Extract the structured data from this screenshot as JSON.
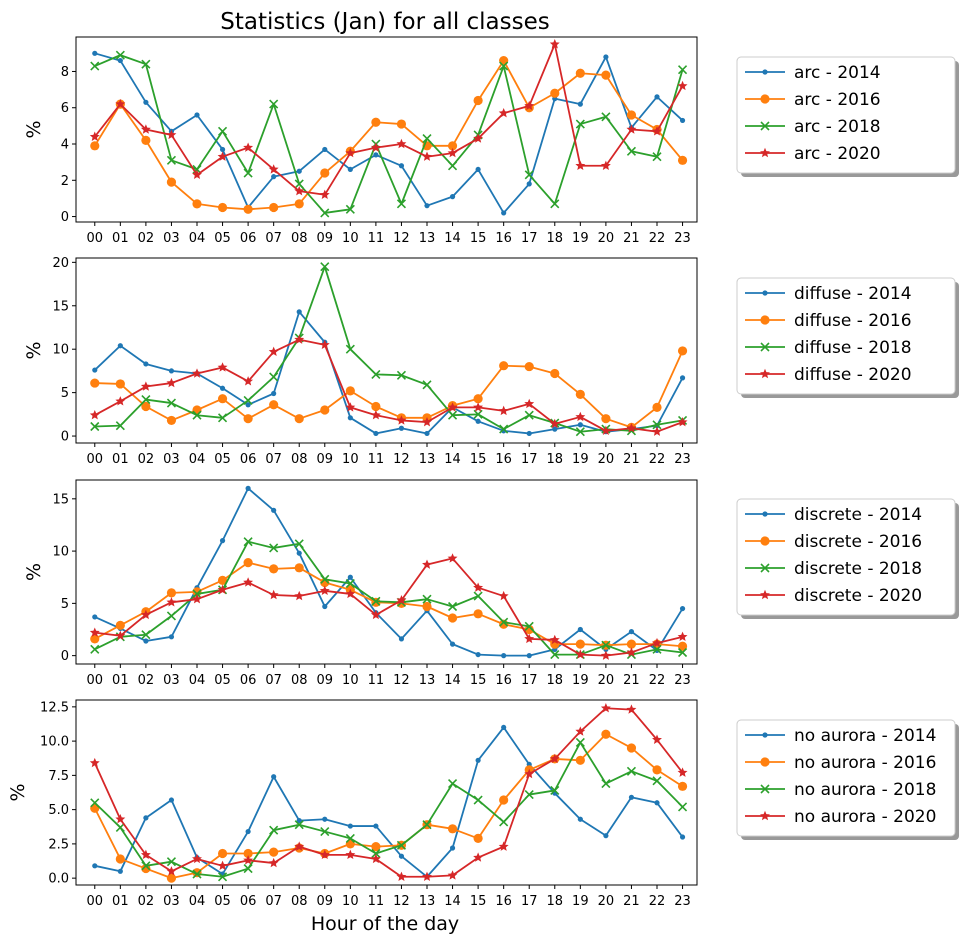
{
  "figure": {
    "title": "Statistics (Jan) for all classes",
    "xlabel": "Hour of the day"
  },
  "colors": {
    "2014": "#1f77b4",
    "2016": "#ff7f0e",
    "2018": "#2ca02c",
    "2020": "#d62728"
  },
  "chart_data": [
    {
      "type": "line",
      "x": [
        "00",
        "01",
        "02",
        "03",
        "04",
        "05",
        "06",
        "07",
        "08",
        "09",
        "10",
        "11",
        "12",
        "13",
        "14",
        "15",
        "16",
        "17",
        "18",
        "19",
        "20",
        "21",
        "22",
        "23"
      ],
      "ylabel": "%",
      "ylim": [
        -0.3,
        9.9
      ],
      "yticks": [
        0,
        2,
        4,
        6,
        8
      ],
      "legend": "right",
      "series": [
        {
          "name": "arc - 2014",
          "marker": "dot",
          "values": [
            9.0,
            8.6,
            6.3,
            4.7,
            5.6,
            3.7,
            0.5,
            2.2,
            2.5,
            3.7,
            2.6,
            3.4,
            2.8,
            0.6,
            1.1,
            2.6,
            0.2,
            1.8,
            6.5,
            6.2,
            8.8,
            4.9,
            6.6,
            5.3
          ]
        },
        {
          "name": "arc - 2016",
          "marker": "circle",
          "values": [
            3.9,
            6.2,
            4.2,
            1.9,
            0.7,
            0.5,
            0.4,
            0.5,
            0.7,
            2.4,
            3.6,
            5.2,
            5.1,
            3.9,
            3.9,
            6.4,
            8.6,
            6.0,
            6.8,
            7.9,
            7.8,
            5.6,
            4.8,
            3.1
          ]
        },
        {
          "name": "arc - 2018",
          "marker": "x",
          "values": [
            8.3,
            8.9,
            8.4,
            3.1,
            2.6,
            4.7,
            2.4,
            6.2,
            1.8,
            0.2,
            0.4,
            4.0,
            0.7,
            4.3,
            2.8,
            4.5,
            8.3,
            2.3,
            0.7,
            5.1,
            5.5,
            3.6,
            3.3,
            8.1
          ]
        },
        {
          "name": "arc - 2020",
          "marker": "star",
          "values": [
            4.4,
            6.2,
            4.8,
            4.5,
            2.3,
            3.3,
            3.8,
            2.6,
            1.4,
            1.2,
            3.5,
            3.8,
            4.0,
            3.3,
            3.5,
            4.3,
            5.7,
            6.1,
            9.5,
            2.8,
            2.8,
            4.8,
            4.7,
            7.2
          ]
        }
      ]
    },
    {
      "type": "line",
      "x": [
        "00",
        "01",
        "02",
        "03",
        "04",
        "05",
        "06",
        "07",
        "08",
        "09",
        "10",
        "11",
        "12",
        "13",
        "14",
        "15",
        "16",
        "17",
        "18",
        "19",
        "20",
        "21",
        "22",
        "23"
      ],
      "ylabel": "%",
      "ylim": [
        -0.8,
        20.5
      ],
      "yticks": [
        0,
        5,
        10,
        15,
        20
      ],
      "legend": "right",
      "series": [
        {
          "name": "diffuse - 2014",
          "marker": "dot",
          "values": [
            7.6,
            10.4,
            8.3,
            7.5,
            7.2,
            5.5,
            3.6,
            4.9,
            14.3,
            10.8,
            2.1,
            0.3,
            0.9,
            0.3,
            3.3,
            1.7,
            0.6,
            0.3,
            0.8,
            1.3,
            0.5,
            0.8,
            1.2,
            6.7
          ]
        },
        {
          "name": "diffuse - 2016",
          "marker": "circle",
          "values": [
            6.1,
            6.0,
            3.4,
            1.8,
            3.0,
            4.3,
            2.0,
            3.6,
            2.0,
            3.0,
            5.2,
            3.4,
            2.1,
            2.1,
            3.5,
            4.3,
            8.1,
            8.0,
            7.2,
            4.8,
            2.0,
            1.0,
            3.3,
            9.8
          ]
        },
        {
          "name": "diffuse - 2018",
          "marker": "x",
          "values": [
            1.1,
            1.2,
            4.2,
            3.8,
            2.4,
            2.1,
            4.1,
            6.8,
            11.3,
            19.5,
            10.0,
            7.1,
            7.0,
            5.9,
            2.4,
            2.5,
            0.8,
            2.4,
            1.5,
            0.5,
            0.8,
            0.6,
            1.3,
            1.8
          ]
        },
        {
          "name": "diffuse - 2020",
          "marker": "star",
          "values": [
            2.4,
            4.0,
            5.7,
            6.1,
            7.2,
            7.9,
            6.3,
            9.7,
            11.1,
            10.5,
            3.3,
            2.4,
            1.8,
            1.6,
            3.3,
            3.3,
            2.9,
            3.7,
            1.4,
            2.2,
            0.6,
            0.9,
            0.5,
            1.6
          ]
        }
      ]
    },
    {
      "type": "line",
      "x": [
        "00",
        "01",
        "02",
        "03",
        "04",
        "05",
        "06",
        "07",
        "08",
        "09",
        "10",
        "11",
        "12",
        "13",
        "14",
        "15",
        "16",
        "17",
        "18",
        "19",
        "20",
        "21",
        "22",
        "23"
      ],
      "ylabel": "%",
      "ylim": [
        -0.8,
        16.8
      ],
      "yticks": [
        0,
        5,
        10,
        15
      ],
      "legend": "right",
      "series": [
        {
          "name": "discrete - 2014",
          "marker": "dot",
          "values": [
            3.7,
            2.6,
            1.4,
            1.8,
            6.5,
            11.0,
            16.0,
            13.9,
            9.8,
            4.7,
            7.5,
            4.1,
            1.6,
            4.3,
            1.1,
            0.1,
            0.0,
            0.0,
            0.6,
            2.5,
            0.6,
            2.3,
            0.5,
            4.5
          ]
        },
        {
          "name": "discrete - 2016",
          "marker": "circle",
          "values": [
            1.6,
            2.9,
            4.2,
            6.0,
            6.1,
            7.2,
            8.9,
            8.3,
            8.4,
            7.0,
            6.3,
            5.1,
            5.0,
            4.7,
            3.6,
            4.0,
            3.0,
            2.5,
            1.1,
            1.1,
            1.0,
            1.1,
            1.1,
            0.9
          ]
        },
        {
          "name": "discrete - 2018",
          "marker": "x",
          "values": [
            0.6,
            1.8,
            2.0,
            3.8,
            5.9,
            6.3,
            10.9,
            10.3,
            10.7,
            7.3,
            6.9,
            5.2,
            5.1,
            5.4,
            4.7,
            5.7,
            3.2,
            2.8,
            0.1,
            0.1,
            1.0,
            0.1,
            0.6,
            0.3
          ]
        },
        {
          "name": "discrete - 2020",
          "marker": "star",
          "values": [
            2.2,
            1.9,
            3.9,
            5.1,
            5.4,
            6.3,
            7.0,
            5.8,
            5.7,
            6.2,
            5.9,
            3.9,
            5.3,
            8.7,
            9.3,
            6.5,
            5.7,
            1.6,
            1.5,
            0.1,
            0.0,
            0.3,
            1.2,
            1.8
          ]
        }
      ]
    },
    {
      "type": "line",
      "x": [
        "00",
        "01",
        "02",
        "03",
        "04",
        "05",
        "06",
        "07",
        "08",
        "09",
        "10",
        "11",
        "12",
        "13",
        "14",
        "15",
        "16",
        "17",
        "18",
        "19",
        "20",
        "21",
        "22",
        "23"
      ],
      "ylabel": "%",
      "xlabel": "Hour of the day",
      "ylim": [
        -0.5,
        13.0
      ],
      "yticks": [
        0.0,
        2.5,
        5.0,
        7.5,
        10.0,
        12.5
      ],
      "yticklabels": [
        "0.0",
        "2.5",
        "5.0",
        "7.5",
        "10.0",
        "12.5"
      ],
      "legend": "right",
      "series": [
        {
          "name": "no aurora - 2014",
          "marker": "dot",
          "values": [
            0.9,
            0.5,
            4.4,
            5.7,
            1.5,
            0.3,
            3.4,
            7.4,
            4.2,
            4.3,
            3.8,
            3.8,
            1.6,
            0.1,
            2.2,
            8.6,
            11.0,
            8.3,
            6.2,
            4.3,
            3.1,
            5.9,
            5.5,
            3.0
          ]
        },
        {
          "name": "no aurora - 2016",
          "marker": "circle",
          "values": [
            5.1,
            1.4,
            0.7,
            0.0,
            0.4,
            1.8,
            1.8,
            1.9,
            2.2,
            1.8,
            2.5,
            2.3,
            2.4,
            3.9,
            3.6,
            2.9,
            5.7,
            7.9,
            8.7,
            8.6,
            10.5,
            9.5,
            7.9,
            6.7
          ]
        },
        {
          "name": "no aurora - 2018",
          "marker": "x",
          "values": [
            5.5,
            3.7,
            0.9,
            1.2,
            0.3,
            0.1,
            0.7,
            3.5,
            3.9,
            3.4,
            2.9,
            1.8,
            2.4,
            3.9,
            6.9,
            5.7,
            4.1,
            6.1,
            6.4,
            9.9,
            6.9,
            7.8,
            7.1,
            5.2
          ]
        },
        {
          "name": "no aurora - 2020",
          "marker": "star",
          "values": [
            8.4,
            4.3,
            1.7,
            0.5,
            1.4,
            0.9,
            1.3,
            1.1,
            2.3,
            1.7,
            1.7,
            1.4,
            0.1,
            0.1,
            0.2,
            1.5,
            2.3,
            7.6,
            8.7,
            10.7,
            12.4,
            12.3,
            10.1,
            7.7
          ]
        }
      ]
    }
  ]
}
